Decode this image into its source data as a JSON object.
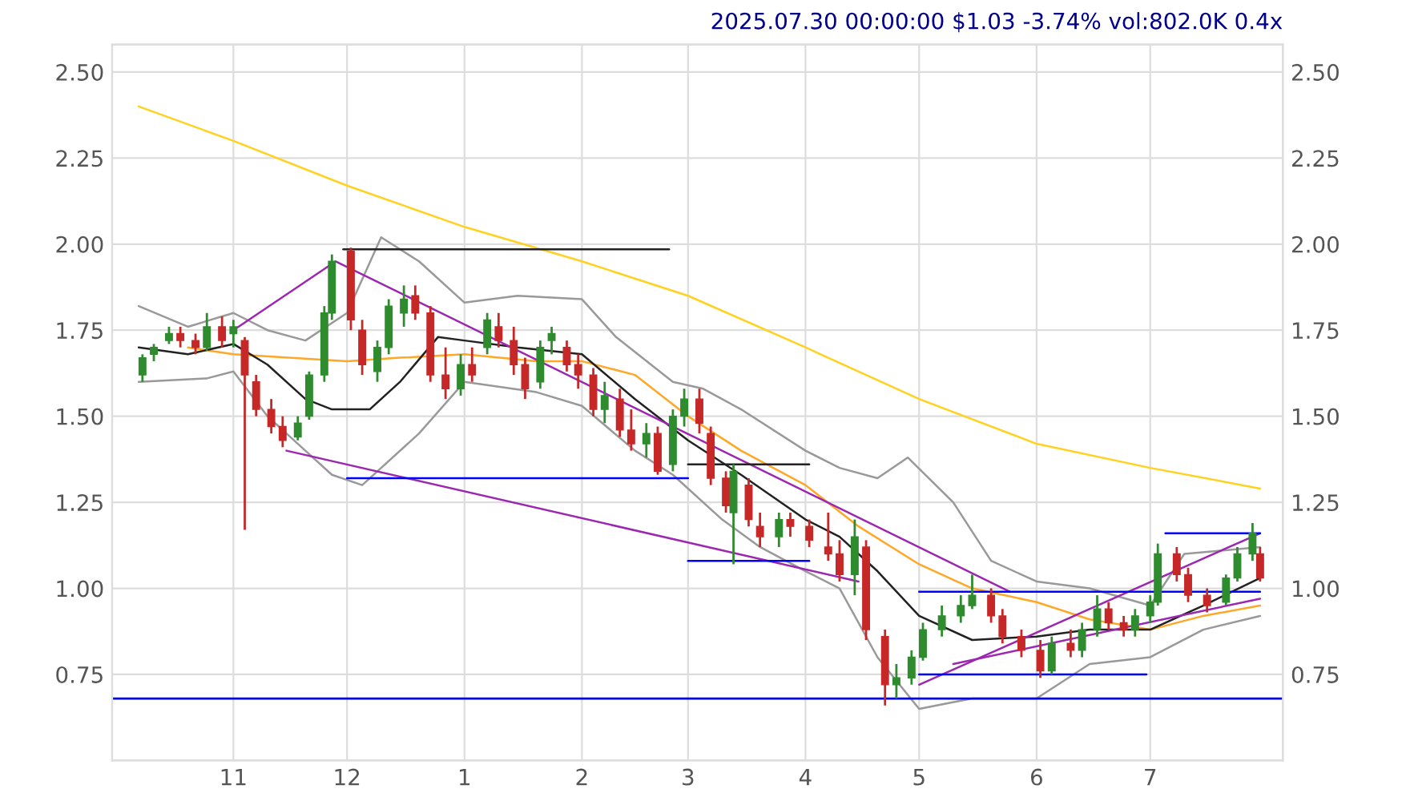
{
  "chart_data": {
    "type": "candlestick",
    "annotations": [
      "2025.07.30 00:00:00 $1.03 -3.74% vol:802.0K 0.4x"
    ],
    "x": [
      "2024-10-08",
      "2024-10-11",
      "2024-10-15",
      "2024-10-18",
      "2024-10-22",
      "2024-10-25",
      "2024-10-29",
      "2024-11-01",
      "2024-11-04",
      "2024-11-07",
      "2024-11-11",
      "2024-11-14",
      "2024-11-18",
      "2024-11-21",
      "2024-11-25",
      "2024-11-27",
      "2024-12-02",
      "2024-12-05",
      "2024-12-09",
      "2024-12-12",
      "2024-12-16",
      "2024-12-19",
      "2024-12-23",
      "2024-12-27",
      "2024-12-31",
      "2025-01-03",
      "2025-01-07",
      "2025-01-10",
      "2025-01-14",
      "2025-01-17",
      "2025-01-21",
      "2025-01-24",
      "2025-01-28",
      "2025-01-31",
      "2025-02-04",
      "2025-02-07",
      "2025-02-11",
      "2025-02-14",
      "2025-02-18",
      "2025-02-21",
      "2025-02-25",
      "2025-02-28",
      "2025-03-04",
      "2025-03-07",
      "2025-03-11",
      "2025-03-13",
      "2025-03-17",
      "2025-03-20",
      "2025-03-25",
      "2025-03-28",
      "2025-04-02",
      "2025-04-07",
      "2025-04-10",
      "2025-04-14",
      "2025-04-17",
      "2025-04-22",
      "2025-04-25",
      "2025-04-29",
      "2025-05-02",
      "2025-05-07",
      "2025-05-12",
      "2025-05-15",
      "2025-05-20",
      "2025-05-23",
      "2025-05-28",
      "2025-06-02",
      "2025-06-05",
      "2025-06-10",
      "2025-06-13",
      "2025-06-17",
      "2025-06-20",
      "2025-06-24",
      "2025-06-27",
      "2025-07-01",
      "2025-07-03",
      "2025-07-08",
      "2025-07-11",
      "2025-07-16",
      "2025-07-21",
      "2025-07-24",
      "2025-07-28",
      "2025-07-30"
    ],
    "ohlc": [
      [
        1.62,
        1.68,
        1.6,
        1.67
      ],
      [
        1.68,
        1.71,
        1.66,
        1.7
      ],
      [
        1.72,
        1.76,
        1.71,
        1.74
      ],
      [
        1.74,
        1.76,
        1.7,
        1.72
      ],
      [
        1.72,
        1.74,
        1.68,
        1.7
      ],
      [
        1.7,
        1.8,
        1.69,
        1.76
      ],
      [
        1.76,
        1.79,
        1.7,
        1.72
      ],
      [
        1.74,
        1.78,
        1.7,
        1.76
      ],
      [
        1.72,
        1.73,
        1.17,
        1.62
      ],
      [
        1.6,
        1.62,
        1.5,
        1.52
      ],
      [
        1.52,
        1.55,
        1.45,
        1.47
      ],
      [
        1.47,
        1.5,
        1.41,
        1.43
      ],
      [
        1.44,
        1.5,
        1.43,
        1.48
      ],
      [
        1.5,
        1.63,
        1.49,
        1.62
      ],
      [
        1.62,
        1.82,
        1.6,
        1.8
      ],
      [
        1.8,
        1.97,
        1.78,
        1.95
      ],
      [
        1.98,
        1.99,
        1.75,
        1.78
      ],
      [
        1.75,
        1.78,
        1.62,
        1.65
      ],
      [
        1.63,
        1.72,
        1.6,
        1.7
      ],
      [
        1.7,
        1.84,
        1.68,
        1.82
      ],
      [
        1.8,
        1.88,
        1.76,
        1.84
      ],
      [
        1.85,
        1.88,
        1.78,
        1.8
      ],
      [
        1.8,
        1.82,
        1.6,
        1.62
      ],
      [
        1.62,
        1.7,
        1.55,
        1.58
      ],
      [
        1.58,
        1.68,
        1.56,
        1.65
      ],
      [
        1.65,
        1.7,
        1.6,
        1.62
      ],
      [
        1.7,
        1.8,
        1.68,
        1.78
      ],
      [
        1.76,
        1.8,
        1.7,
        1.72
      ],
      [
        1.72,
        1.76,
        1.62,
        1.65
      ],
      [
        1.65,
        1.67,
        1.55,
        1.58
      ],
      [
        1.6,
        1.72,
        1.58,
        1.7
      ],
      [
        1.72,
        1.76,
        1.68,
        1.74
      ],
      [
        1.7,
        1.72,
        1.63,
        1.65
      ],
      [
        1.65,
        1.68,
        1.58,
        1.62
      ],
      [
        1.62,
        1.64,
        1.5,
        1.52
      ],
      [
        1.52,
        1.6,
        1.48,
        1.56
      ],
      [
        1.55,
        1.58,
        1.44,
        1.46
      ],
      [
        1.46,
        1.52,
        1.4,
        1.42
      ],
      [
        1.42,
        1.48,
        1.38,
        1.45
      ],
      [
        1.45,
        1.47,
        1.33,
        1.34
      ],
      [
        1.36,
        1.52,
        1.34,
        1.5
      ],
      [
        1.5,
        1.58,
        1.47,
        1.55
      ],
      [
        1.55,
        1.58,
        1.45,
        1.48
      ],
      [
        1.45,
        1.47,
        1.3,
        1.32
      ],
      [
        1.32,
        1.34,
        1.22,
        1.24
      ],
      [
        1.22,
        1.36,
        1.07,
        1.34
      ],
      [
        1.3,
        1.32,
        1.18,
        1.2
      ],
      [
        1.18,
        1.22,
        1.12,
        1.15
      ],
      [
        1.15,
        1.22,
        1.12,
        1.2
      ],
      [
        1.2,
        1.22,
        1.15,
        1.18
      ],
      [
        1.18,
        1.2,
        1.12,
        1.14
      ],
      [
        1.12,
        1.22,
        1.08,
        1.1
      ],
      [
        1.1,
        1.14,
        1.02,
        1.04
      ],
      [
        1.04,
        1.2,
        0.98,
        1.15
      ],
      [
        1.12,
        1.14,
        0.85,
        0.88
      ],
      [
        0.86,
        0.88,
        0.66,
        0.72
      ],
      [
        0.72,
        0.78,
        0.68,
        0.74
      ],
      [
        0.74,
        0.82,
        0.72,
        0.8
      ],
      [
        0.8,
        0.9,
        0.79,
        0.88
      ],
      [
        0.88,
        0.95,
        0.86,
        0.92
      ],
      [
        0.92,
        0.98,
        0.9,
        0.95
      ],
      [
        0.95,
        1.04,
        0.94,
        0.98
      ],
      [
        0.98,
        1.0,
        0.9,
        0.92
      ],
      [
        0.92,
        0.94,
        0.84,
        0.86
      ],
      [
        0.86,
        0.88,
        0.8,
        0.82
      ],
      [
        0.82,
        0.85,
        0.74,
        0.76
      ],
      [
        0.76,
        0.86,
        0.75,
        0.84
      ],
      [
        0.84,
        0.88,
        0.8,
        0.82
      ],
      [
        0.82,
        0.9,
        0.8,
        0.88
      ],
      [
        0.88,
        0.98,
        0.86,
        0.94
      ],
      [
        0.94,
        0.96,
        0.88,
        0.9
      ],
      [
        0.9,
        0.92,
        0.86,
        0.88
      ],
      [
        0.88,
        0.94,
        0.86,
        0.92
      ],
      [
        0.92,
        0.98,
        0.9,
        0.96
      ],
      [
        0.96,
        1.13,
        0.95,
        1.1
      ],
      [
        1.1,
        1.12,
        1.02,
        1.04
      ],
      [
        1.04,
        1.06,
        0.96,
        0.98
      ],
      [
        0.98,
        1.0,
        0.93,
        0.95
      ],
      [
        0.96,
        1.04,
        0.95,
        1.03
      ],
      [
        1.03,
        1.12,
        1.02,
        1.1
      ],
      [
        1.1,
        1.19,
        1.08,
        1.16
      ],
      [
        1.1,
        1.12,
        1.02,
        1.03
      ]
    ],
    "series": [
      {
        "type": "line",
        "color": "#ffd21f",
        "x": [
          "2024-10-07",
          "2024-11-01",
          "2024-12-01",
          "2025-01-01",
          "2025-02-01",
          "2025-03-01",
          "2025-04-01",
          "2025-05-01",
          "2025-06-01",
          "2025-07-01",
          "2025-07-30"
        ],
        "values": [
          2.4,
          2.3,
          2.17,
          2.05,
          1.95,
          1.85,
          1.7,
          1.55,
          1.42,
          1.35,
          1.29
        ]
      },
      {
        "type": "line",
        "color": "#ffa726",
        "x": [
          "2024-10-20",
          "2024-11-01",
          "2024-12-01",
          "2024-12-15",
          "2025-01-01",
          "2025-01-20",
          "2025-02-01",
          "2025-02-15",
          "2025-03-01",
          "2025-03-15",
          "2025-04-01",
          "2025-04-15",
          "2025-05-01",
          "2025-05-15",
          "2025-06-01",
          "2025-06-15",
          "2025-07-01",
          "2025-07-15",
          "2025-07-30"
        ],
        "values": [
          1.7,
          1.68,
          1.66,
          1.67,
          1.68,
          1.66,
          1.66,
          1.62,
          1.5,
          1.4,
          1.3,
          1.18,
          1.07,
          1.0,
          0.96,
          0.91,
          0.88,
          0.92,
          0.95
        ]
      },
      {
        "type": "line",
        "color": "#222222",
        "x": [
          "2024-10-07",
          "2024-10-20",
          "2024-11-01",
          "2024-11-10",
          "2024-11-20",
          "2024-11-27",
          "2024-12-07",
          "2024-12-15",
          "2024-12-25",
          "2025-01-01",
          "2025-01-15",
          "2025-02-01",
          "2025-02-15",
          "2025-03-01",
          "2025-03-15",
          "2025-04-01",
          "2025-04-10",
          "2025-04-20",
          "2025-05-01",
          "2025-05-15",
          "2025-06-01",
          "2025-06-15",
          "2025-07-01",
          "2025-07-15",
          "2025-07-30"
        ],
        "values": [
          1.7,
          1.68,
          1.71,
          1.65,
          1.55,
          1.52,
          1.52,
          1.6,
          1.73,
          1.72,
          1.7,
          1.68,
          1.55,
          1.43,
          1.33,
          1.2,
          1.15,
          1.05,
          0.92,
          0.85,
          0.86,
          0.88,
          0.88,
          0.95,
          1.03
        ]
      },
      {
        "type": "line",
        "color": "#999999",
        "x": [
          "2024-10-07",
          "2024-10-20",
          "2024-11-01",
          "2024-11-10",
          "2024-11-20",
          "2024-12-01",
          "2024-12-10",
          "2024-12-20",
          "2025-01-01",
          "2025-01-15",
          "2025-02-01",
          "2025-02-10",
          "2025-02-25",
          "2025-03-05",
          "2025-03-15",
          "2025-04-01",
          "2025-04-10",
          "2025-04-20",
          "2025-04-28",
          "2025-05-10",
          "2025-05-20",
          "2025-06-01",
          "2025-06-15",
          "2025-07-01",
          "2025-07-10",
          "2025-07-30"
        ],
        "values": [
          1.82,
          1.76,
          1.8,
          1.75,
          1.72,
          1.8,
          2.02,
          1.95,
          1.83,
          1.85,
          1.84,
          1.73,
          1.6,
          1.58,
          1.52,
          1.4,
          1.35,
          1.32,
          1.38,
          1.25,
          1.08,
          1.02,
          1.0,
          0.95,
          1.1,
          1.12
        ]
      },
      {
        "type": "line",
        "color": "#999999",
        "x": [
          "2024-10-07",
          "2024-10-25",
          "2024-11-01",
          "2024-11-10",
          "2024-11-20",
          "2024-11-27",
          "2024-12-05",
          "2024-12-20",
          "2025-01-01",
          "2025-01-20",
          "2025-02-01",
          "2025-02-15",
          "2025-02-25",
          "2025-03-10",
          "2025-03-20",
          "2025-04-01",
          "2025-04-10",
          "2025-04-20",
          "2025-05-01",
          "2025-05-15",
          "2025-06-01",
          "2025-06-15",
          "2025-07-01",
          "2025-07-15",
          "2025-07-30"
        ],
        "values": [
          1.6,
          1.61,
          1.63,
          1.5,
          1.4,
          1.33,
          1.3,
          1.45,
          1.6,
          1.57,
          1.53,
          1.4,
          1.33,
          1.2,
          1.12,
          1.05,
          1.0,
          0.8,
          0.65,
          0.68,
          0.68,
          0.78,
          0.8,
          0.88,
          0.92
        ]
      },
      {
        "type": "line",
        "color": "#9c27b0",
        "x": [
          "2024-11-01",
          "2024-11-28",
          "2025-05-25"
        ],
        "values": [
          1.75,
          1.95,
          0.99
        ]
      },
      {
        "type": "line",
        "color": "#9c27b0",
        "x": [
          "2024-11-15",
          "2025-04-15"
        ],
        "values": [
          1.4,
          1.02
        ]
      },
      {
        "type": "line",
        "color": "#9c27b0",
        "x": [
          "2025-05-01",
          "2025-07-30"
        ],
        "values": [
          0.72,
          1.16
        ]
      },
      {
        "type": "line",
        "color": "#9c27b0",
        "x": [
          "2025-05-10",
          "2025-07-30"
        ],
        "values": [
          0.78,
          0.97
        ]
      },
      {
        "type": "line",
        "color": "#222222",
        "x": [
          "2024-11-30",
          "2025-02-24"
        ],
        "values": [
          1.985,
          1.985
        ]
      },
      {
        "type": "line",
        "color": "#222222",
        "x": [
          "2025-03-01",
          "2025-04-02"
        ],
        "values": [
          1.36,
          1.36
        ]
      },
      {
        "type": "line",
        "color": "#0000ff",
        "x": [
          "2024-12-01",
          "2025-03-01"
        ],
        "values": [
          1.32,
          1.32
        ]
      },
      {
        "type": "line",
        "color": "#0000ff",
        "x": [
          "2025-03-01",
          "2025-04-02"
        ],
        "values": [
          1.08,
          1.08
        ]
      },
      {
        "type": "line",
        "color": "#0000ff",
        "x": [
          "2025-05-01",
          "2025-07-30"
        ],
        "values": [
          0.99,
          0.99
        ]
      },
      {
        "type": "line",
        "color": "#0000ff",
        "x": [
          "2025-05-01",
          "2025-06-30"
        ],
        "values": [
          0.75,
          0.75
        ]
      },
      {
        "type": "line",
        "color": "#0000ff",
        "x": [
          "2025-07-05",
          "2025-07-30"
        ],
        "values": [
          1.16,
          1.16
        ]
      }
    ],
    "ref_lines": [
      {
        "axis": "y",
        "value": 0.68,
        "color": "#0000ff"
      }
    ],
    "xlim": [
      "2024-09-30",
      "2025-08-05"
    ],
    "xticks": [
      {
        "value": "2024-11-01",
        "label": "11"
      },
      {
        "value": "2024-12-01",
        "label": "12"
      },
      {
        "value": "2025-01-01",
        "label": "1"
      },
      {
        "value": "2025-02-01",
        "label": "2"
      },
      {
        "value": "2025-03-01",
        "label": "3"
      },
      {
        "value": "2025-04-01",
        "label": "4"
      },
      {
        "value": "2025-05-01",
        "label": "5"
      },
      {
        "value": "2025-06-01",
        "label": "6"
      },
      {
        "value": "2025-07-01",
        "label": "7"
      }
    ],
    "ylim": [
      0.5,
      2.58
    ],
    "yticks": [
      {
        "value": 0.75,
        "label": "0.75"
      },
      {
        "value": 1.0,
        "label": "1.00"
      },
      {
        "value": 1.25,
        "label": "1.25"
      },
      {
        "value": 1.5,
        "label": "1.50"
      },
      {
        "value": 1.75,
        "label": "1.75"
      },
      {
        "value": 2.0,
        "label": "2.00"
      },
      {
        "value": 2.25,
        "label": "2.25"
      },
      {
        "value": 2.5,
        "label": "2.50"
      }
    ],
    "y2lim": [
      0.5,
      2.58
    ],
    "y2ticks": [
      {
        "value": 0.75,
        "label": "0.75"
      },
      {
        "value": 1.0,
        "label": "1.00"
      },
      {
        "value": 1.25,
        "label": "1.25"
      },
      {
        "value": 1.5,
        "label": "1.50"
      },
      {
        "value": 1.75,
        "label": "1.75"
      },
      {
        "value": 2.0,
        "label": "2.00"
      },
      {
        "value": 2.25,
        "label": "2.25"
      },
      {
        "value": 2.5,
        "label": "2.50"
      }
    ],
    "grid": true
  }
}
